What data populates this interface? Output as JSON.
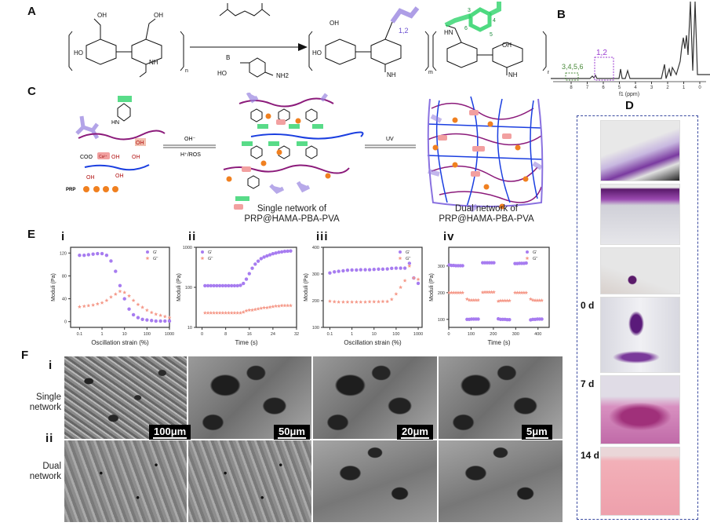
{
  "panels": {
    "A": "A",
    "B": "B",
    "C": "C",
    "D": "D",
    "E": "E",
    "F": "F"
  },
  "panel_a": {
    "sub_n": "n",
    "sub_m": "m",
    "sub_n2": "n",
    "oh": "OH",
    "ho": "HO",
    "nh": "NH",
    "o": "O",
    "hn": "HN",
    "boronic_reagent": "B",
    "nh2": "NH2",
    "pos_12": "1,2",
    "pos_3": "3",
    "pos_4": "4",
    "pos_5": "5",
    "pos_6": "6",
    "colors": {
      "methacryl": "#9a86e0",
      "pba": "#2fd36b"
    }
  },
  "panel_b": {
    "label_3456": "3,4,5,6",
    "label_12": "1,2",
    "ticks": [
      "8",
      "7",
      "6",
      "5",
      "4",
      "3",
      "2",
      "1",
      "0"
    ],
    "xlabel": "f1 (ppm)"
  },
  "panel_c": {
    "oh_arrow_top": "OH⁻",
    "oh_arrow_bottom": "H⁺/ROS",
    "uv_label": "UV",
    "coo": "COO",
    "ca": "Ca²⁺",
    "oh": "OH",
    "hn": "HN",
    "prp": "PRP",
    "single_caption": [
      "Single network of",
      "PRP@HAMA-PBA-PVA"
    ],
    "dual_caption": [
      "Dual network of",
      "PRP@HAMA-PBA-PVA"
    ],
    "colors": {
      "hama": "#8b1a7a",
      "pva": "#1a3ee0",
      "prp": "#f08020",
      "ca_box": "#f2a0a0",
      "methacryl": "#9a86e0"
    }
  },
  "panel_d": {
    "timepoints": [
      "0 d",
      "7 d",
      "14 d"
    ]
  },
  "panel_e": {
    "sublabels": [
      "i",
      "ii",
      "iii",
      "iv"
    ]
  },
  "panel_f": {
    "row_labels": [
      "i",
      "ii"
    ],
    "row_names": [
      [
        "Single",
        "network"
      ],
      [
        "Dual",
        "network"
      ]
    ],
    "scale_bars": [
      "100μm",
      "50μm",
      "20μm",
      "5μm"
    ]
  },
  "chart_data": [
    {
      "type": "scatter",
      "id": "i",
      "xscale": "log",
      "xlim": [
        0.04,
        1000
      ],
      "ylim": [
        -10,
        130
      ],
      "xticks": [
        0.1,
        1,
        10,
        100,
        1000
      ],
      "xtick_labels": [
        "0.1",
        "1",
        "10",
        "100",
        "1000"
      ],
      "yticks": [
        0,
        40,
        80,
        120
      ],
      "ytick_labels": [
        "0",
        "40",
        "80",
        "120"
      ],
      "xlabel": "Oscillation strain (%)",
      "ylabel": "Moduli (Pa)",
      "legend": "top-right",
      "x": [
        0.1,
        0.16,
        0.25,
        0.4,
        0.63,
        1,
        1.6,
        2.5,
        4,
        6.3,
        10,
        16,
        25,
        40,
        63,
        100,
        160,
        250,
        400,
        630,
        1000
      ],
      "series": [
        {
          "name": "G'",
          "color": "#a77cf0",
          "values": [
            116,
            116,
            117,
            118,
            119,
            119,
            116,
            106,
            88,
            63,
            40,
            22,
            12,
            7,
            4,
            3,
            2,
            1,
            1,
            1,
            1
          ]
        },
        {
          "name": "G''",
          "color": "#f59a8a",
          "values": [
            26,
            27,
            28,
            29,
            31,
            33,
            37,
            43,
            48,
            53,
            51,
            45,
            37,
            30,
            25,
            20,
            16,
            13,
            11,
            9,
            7
          ]
        }
      ]
    },
    {
      "type": "scatter",
      "id": "ii",
      "xscale": "linear",
      "yscale": "log",
      "xlim": [
        -2,
        32
      ],
      "ylim": [
        10,
        1000
      ],
      "xticks": [
        0,
        8,
        16,
        24,
        32
      ],
      "xtick_labels": [
        "0",
        "8",
        "16",
        "24",
        "32"
      ],
      "yticks": [
        10,
        100,
        1000
      ],
      "ytick_labels": [
        "10",
        "100",
        "1000"
      ],
      "xlabel": "Time (s)",
      "ylabel": "Moduli (Pa)",
      "legend": "top-left",
      "x": [
        1,
        2,
        3,
        4,
        5,
        6,
        7,
        8,
        9,
        10,
        11,
        12,
        13,
        14,
        15,
        16,
        17,
        18,
        19,
        20,
        21,
        22,
        23,
        24,
        25,
        26,
        27,
        28,
        29,
        30
      ],
      "series": [
        {
          "name": "G'",
          "color": "#a77cf0",
          "values": [
            110,
            110,
            110,
            110,
            110,
            110,
            110,
            110,
            110,
            110,
            110,
            110,
            112,
            125,
            160,
            220,
            300,
            380,
            450,
            520,
            570,
            610,
            650,
            690,
            720,
            750,
            770,
            790,
            800,
            810
          ]
        },
        {
          "name": "G''",
          "color": "#f59a8a",
          "values": [
            23,
            23,
            23,
            23,
            23,
            23,
            23,
            23,
            23,
            23,
            23,
            23,
            23,
            24,
            26,
            27,
            27,
            28,
            29,
            30,
            31,
            31,
            32,
            33,
            34,
            34,
            35,
            35,
            35,
            35
          ]
        }
      ]
    },
    {
      "type": "scatter",
      "id": "iii",
      "xscale": "log",
      "xlim": [
        0.05,
        1500
      ],
      "ylim": [
        100,
        400
      ],
      "xticks": [
        0.1,
        1,
        10,
        100,
        1000
      ],
      "xtick_labels": [
        "0.1",
        "1",
        "10",
        "100",
        "1000"
      ],
      "yticks": [
        100,
        200,
        300,
        400
      ],
      "ytick_labels": [
        "100",
        "200",
        "300",
        "400"
      ],
      "xlabel": "Oscillation strain (%)",
      "ylabel": "Moduli (Pa)",
      "legend": "top-right",
      "x": [
        0.1,
        0.16,
        0.25,
        0.4,
        0.63,
        1,
        1.6,
        2.5,
        4,
        6.3,
        10,
        16,
        25,
        40,
        63,
        100,
        160,
        250,
        400,
        630,
        1000
      ],
      "series": [
        {
          "name": "G'",
          "color": "#a77cf0",
          "values": [
            304,
            308,
            310,
            312,
            314,
            315,
            315,
            316,
            316,
            316,
            317,
            318,
            318,
            319,
            321,
            322,
            322,
            322,
            340,
            285,
            265
          ]
        },
        {
          "name": "G''",
          "color": "#f59a8a",
          "values": [
            198,
            196,
            195,
            195,
            195,
            195,
            195,
            195,
            195,
            196,
            196,
            196,
            197,
            197,
            205,
            225,
            250,
            275,
            330,
            285,
            280
          ]
        }
      ]
    },
    {
      "type": "scatter",
      "id": "iv",
      "xscale": "linear",
      "xlim": [
        0,
        450
      ],
      "ylim": [
        70,
        370
      ],
      "xticks": [
        0,
        100,
        200,
        300,
        400
      ],
      "xtick_labels": [
        "0",
        "100",
        "200",
        "300",
        "400"
      ],
      "yticks": [
        100,
        200,
        300
      ],
      "ytick_labels": [
        "100",
        "200",
        "300"
      ],
      "xlabel": "Time (s)",
      "ylabel": "Moduli (Pa)",
      "legend": "top-right",
      "x": [
        2,
        12,
        22,
        32,
        42,
        52,
        62,
        82,
        92,
        102,
        112,
        122,
        132,
        152,
        162,
        172,
        182,
        192,
        202,
        222,
        232,
        242,
        252,
        262,
        272,
        297,
        307,
        317,
        327,
        337,
        347,
        367,
        377,
        387,
        397,
        407,
        417
      ],
      "series": [
        {
          "name": "G'",
          "color": "#a77cf0",
          "values": [
            304,
            302,
            302,
            301,
            301,
            301,
            301,
            100,
            100,
            101,
            101,
            101,
            101,
            312,
            312,
            312,
            312,
            312,
            312,
            102,
            100,
            100,
            100,
            99,
            99,
            309,
            309,
            310,
            310,
            310,
            311,
            98,
            100,
            100,
            101,
            101,
            101
          ]
        },
        {
          "name": "G''",
          "color": "#f59a8a",
          "values": [
            200,
            200,
            200,
            200,
            200,
            200,
            200,
            176,
            172,
            172,
            172,
            172,
            172,
            201,
            202,
            202,
            202,
            202,
            202,
            168,
            170,
            170,
            170,
            170,
            170,
            200,
            200,
            200,
            200,
            200,
            200,
            176,
            172,
            171,
            171,
            171,
            171
          ]
        }
      ]
    }
  ]
}
